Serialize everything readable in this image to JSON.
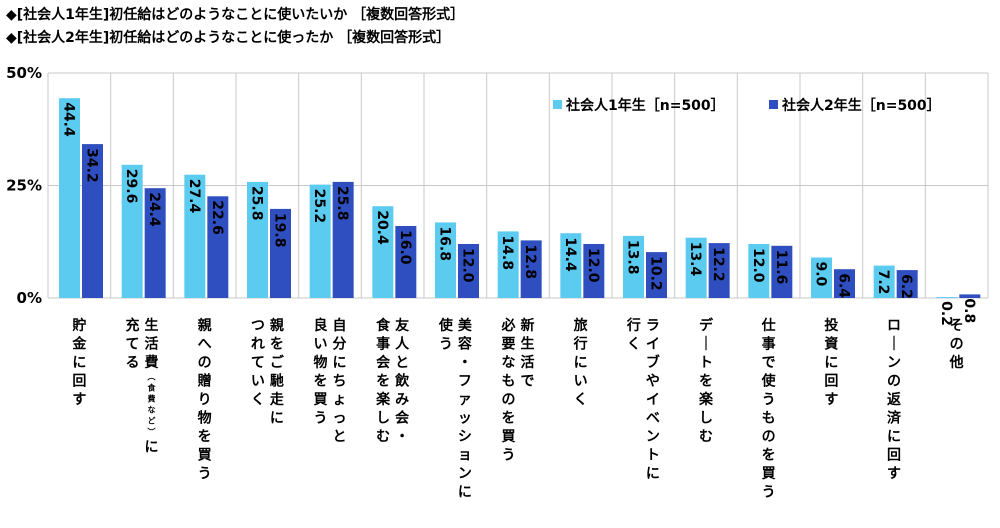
{
  "titles": [
    "◆[社会人1年生]初任給はどのようなことに使いたいか ［複数回答形式］",
    "◆[社会人2年生]初任給はどのようなことに使ったか ［複数回答形式］"
  ],
  "colors": {
    "series1": "#5ccbf0",
    "series2": "#2f4fc0",
    "grid": "#c8c8c8"
  },
  "chart_data": {
    "type": "bar",
    "ylim": [
      0,
      50
    ],
    "yticks": [
      "0%",
      "25%",
      "50%"
    ],
    "legend_position": "top-right",
    "categories": [
      "貯金に回す",
      "生活費（食費など）に充てる",
      "親への贈り物を買う",
      "親をご馳走につれていく",
      "自分にちょっと良い物を買う",
      "友人と飲み会・食事会を楽しむ",
      "美容・ファッションに使う",
      "新生活で必要なものを買う",
      "旅行にいく",
      "ライブやイベントに行く",
      "デートを楽しむ",
      "仕事で使うものを買う",
      "投資に回す",
      "ローンの返済に回す",
      "その他"
    ],
    "series": [
      {
        "name": "社会人1年生［n=500］",
        "values": [
          44.4,
          29.6,
          27.4,
          25.8,
          25.2,
          20.4,
          16.8,
          14.8,
          14.4,
          13.8,
          13.4,
          12.0,
          9.0,
          7.2,
          0.2
        ],
        "labels": [
          "44.4",
          "29.6",
          "27.4",
          "25.8",
          "25.2",
          "20.4",
          "16.8",
          "14.8",
          "14.4",
          "13.8",
          "13.4",
          "12.0",
          "9.0",
          "7.2",
          "0.2"
        ]
      },
      {
        "name": "社会人2年生［n=500］",
        "values": [
          34.2,
          24.4,
          22.6,
          19.8,
          25.8,
          16.0,
          12.0,
          12.8,
          12.0,
          10.2,
          12.2,
          11.6,
          6.4,
          6.2,
          0.8
        ],
        "labels": [
          "34.2",
          "24.4",
          "22.6",
          "19.8",
          "25.8",
          "16.0",
          "12.0",
          "12.8",
          "12.0",
          "10.2",
          "12.2",
          "11.6",
          "6.4",
          "6.2",
          "0.8"
        ]
      }
    ]
  }
}
